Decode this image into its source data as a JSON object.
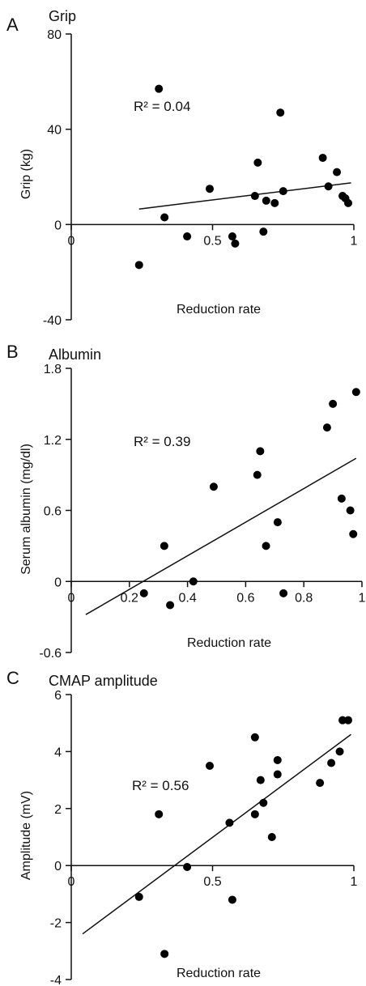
{
  "chart_data": [
    {
      "type": "scatter",
      "panel": "A",
      "title": "Grip",
      "xlabel": "Reduction rate",
      "ylabel": "Grip (kg)",
      "annotation": "R² = 0.04",
      "xlim": [
        0,
        1
      ],
      "ylim": [
        -40,
        80
      ],
      "x_ticks": [
        0,
        0.5,
        1
      ],
      "x_tick_labels": [
        "0",
        "0.5",
        "1"
      ],
      "y_ticks": [
        -40,
        0,
        40,
        80
      ],
      "y_tick_labels": [
        "-40",
        "0",
        "40",
        "80"
      ],
      "points": [
        {
          "x": 0.24,
          "y": -17
        },
        {
          "x": 0.31,
          "y": 57
        },
        {
          "x": 0.33,
          "y": 3
        },
        {
          "x": 0.41,
          "y": -5
        },
        {
          "x": 0.49,
          "y": 15
        },
        {
          "x": 0.57,
          "y": -5
        },
        {
          "x": 0.58,
          "y": -8
        },
        {
          "x": 0.65,
          "y": 12
        },
        {
          "x": 0.66,
          "y": 26
        },
        {
          "x": 0.68,
          "y": -3
        },
        {
          "x": 0.69,
          "y": 10
        },
        {
          "x": 0.72,
          "y": 9
        },
        {
          "x": 0.74,
          "y": 47
        },
        {
          "x": 0.75,
          "y": 14
        },
        {
          "x": 0.89,
          "y": 28
        },
        {
          "x": 0.91,
          "y": 16
        },
        {
          "x": 0.94,
          "y": 22
        },
        {
          "x": 0.96,
          "y": 12
        },
        {
          "x": 0.97,
          "y": 11
        },
        {
          "x": 0.98,
          "y": 9
        }
      ],
      "trendline": [
        {
          "x": 0.24,
          "y": 6.5
        },
        {
          "x": 0.99,
          "y": 17.5
        }
      ]
    },
    {
      "type": "scatter",
      "panel": "B",
      "title": "Albumin",
      "xlabel": "Reduction rate",
      "ylabel": "Serum albumin (mg/dl)",
      "annotation": "R² = 0.39",
      "xlim": [
        0,
        1
      ],
      "ylim": [
        -0.6,
        1.8
      ],
      "x_ticks": [
        0,
        0.2,
        0.4,
        0.6,
        0.8,
        1
      ],
      "x_tick_labels": [
        "0",
        "0.2",
        "0.4",
        "0.6",
        "0.8",
        "1"
      ],
      "y_ticks": [
        -0.6,
        0,
        0.6,
        1.2,
        1.8
      ],
      "y_tick_labels": [
        "-0.6",
        "0",
        "0.6",
        "1.2",
        "1.8"
      ],
      "points": [
        {
          "x": 0.25,
          "y": -0.1
        },
        {
          "x": 0.32,
          "y": 0.3
        },
        {
          "x": 0.34,
          "y": -0.2
        },
        {
          "x": 0.42,
          "y": 0.0
        },
        {
          "x": 0.49,
          "y": 0.8
        },
        {
          "x": 0.64,
          "y": 0.9
        },
        {
          "x": 0.65,
          "y": 1.1
        },
        {
          "x": 0.67,
          "y": 0.3
        },
        {
          "x": 0.71,
          "y": 0.5
        },
        {
          "x": 0.73,
          "y": -0.1
        },
        {
          "x": 0.88,
          "y": 1.3
        },
        {
          "x": 0.9,
          "y": 1.5
        },
        {
          "x": 0.93,
          "y": 0.7
        },
        {
          "x": 0.96,
          "y": 0.6
        },
        {
          "x": 0.97,
          "y": 0.4
        },
        {
          "x": 0.98,
          "y": 1.6
        }
      ],
      "trendline": [
        {
          "x": 0.05,
          "y": -0.28
        },
        {
          "x": 0.98,
          "y": 1.04
        }
      ]
    },
    {
      "type": "scatter",
      "panel": "C",
      "title": "CMAP amplitude",
      "xlabel": "Reduction rate",
      "ylabel": "Amplitude (mV)",
      "annotation": "R² = 0.56",
      "xlim": [
        0,
        1
      ],
      "ylim": [
        -4,
        6
      ],
      "x_ticks": [
        0,
        0.5,
        1
      ],
      "x_tick_labels": [
        "0",
        "0.5",
        "1"
      ],
      "y_ticks": [
        -4,
        -2,
        0,
        2,
        4,
        6
      ],
      "y_tick_labels": [
        "-4",
        "-2",
        "0",
        "2",
        "4",
        "6"
      ],
      "points": [
        {
          "x": 0.24,
          "y": -1.1
        },
        {
          "x": 0.31,
          "y": 1.8
        },
        {
          "x": 0.33,
          "y": -3.1
        },
        {
          "x": 0.41,
          "y": -0.05
        },
        {
          "x": 0.49,
          "y": 3.5
        },
        {
          "x": 0.56,
          "y": 1.5
        },
        {
          "x": 0.57,
          "y": -1.2
        },
        {
          "x": 0.65,
          "y": 4.5
        },
        {
          "x": 0.65,
          "y": 1.8
        },
        {
          "x": 0.67,
          "y": 3.0
        },
        {
          "x": 0.68,
          "y": 2.2
        },
        {
          "x": 0.71,
          "y": 1.0
        },
        {
          "x": 0.73,
          "y": 3.7
        },
        {
          "x": 0.73,
          "y": 3.2
        },
        {
          "x": 0.88,
          "y": 2.9
        },
        {
          "x": 0.92,
          "y": 3.6
        },
        {
          "x": 0.95,
          "y": 4.0
        },
        {
          "x": 0.96,
          "y": 5.1
        },
        {
          "x": 0.98,
          "y": 5.1
        }
      ],
      "trendline": [
        {
          "x": 0.04,
          "y": -2.4
        },
        {
          "x": 0.99,
          "y": 4.6
        }
      ]
    }
  ]
}
